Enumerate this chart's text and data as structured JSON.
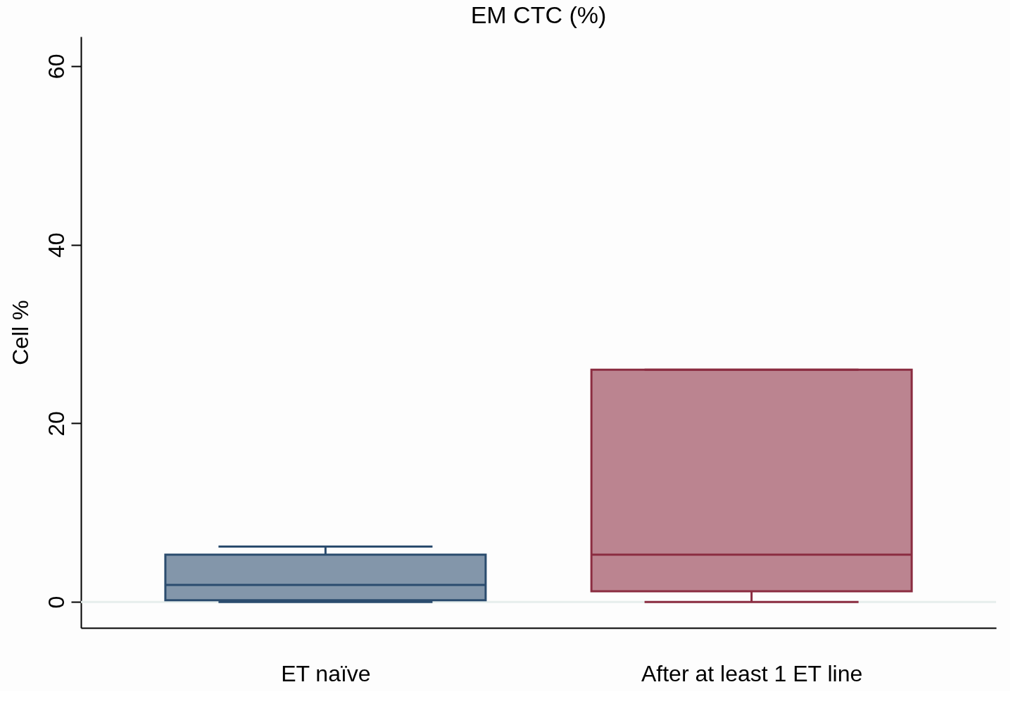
{
  "chart_data": {
    "type": "box",
    "title": "EM CTC (%)",
    "ylabel": "Cell %",
    "categories": [
      "ET naïve",
      "After at least 1 ET line"
    ],
    "boxes": [
      {
        "low": 0,
        "q1": 0.2,
        "median": 1.9,
        "q3": 5.3,
        "high": 6.2
      },
      {
        "low": 0,
        "q1": 1.2,
        "median": 5.3,
        "q3": 26.0,
        "high": 26.0
      }
    ],
    "colors": [
      "#2b4c6e",
      "#8b2c41"
    ],
    "ylim": [
      -2.9,
      63.3
    ],
    "yticks": [
      0,
      20,
      40,
      60
    ],
    "ref_lines": [
      {
        "axis": "y",
        "value": 0,
        "color": "#e6eeec"
      }
    ],
    "grid": false
  }
}
